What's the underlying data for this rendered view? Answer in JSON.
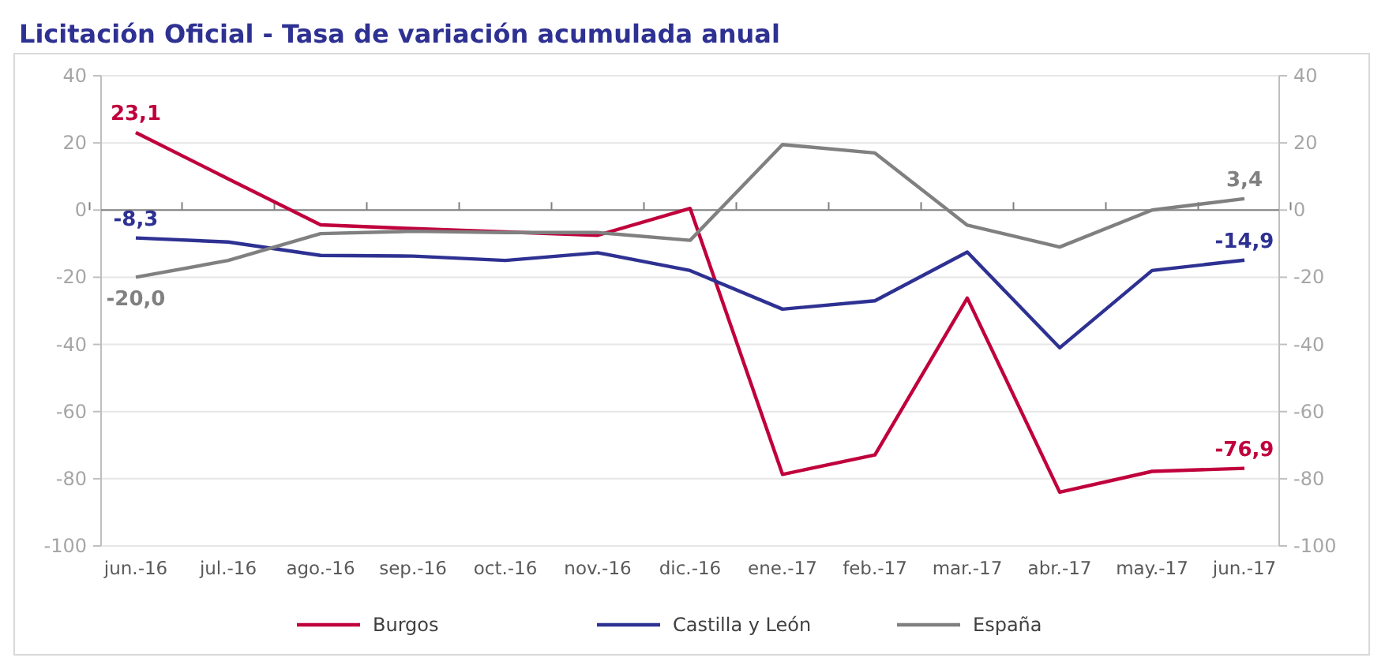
{
  "chart_data": {
    "type": "line",
    "title": "Licitación Oficial - Tasa de variación acumulada anual",
    "categories": [
      "jun.-16",
      "jul.-16",
      "ago.-16",
      "sep.-16",
      "oct.-16",
      "nov.-16",
      "dic.-16",
      "ene.-17",
      "feb.-17",
      "mar.-17",
      "abr.-17",
      "may.-17",
      "jun.-17"
    ],
    "series": [
      {
        "name": "Burgos",
        "color": "#c0003c",
        "values": [
          23.1,
          9.3,
          -4.4,
          -5.5,
          -6.5,
          -7.5,
          0.5,
          -78.7,
          -72.9,
          -26.2,
          -84.0,
          -77.8,
          -76.9
        ],
        "value_labels": [
          "23,1",
          null,
          null,
          null,
          null,
          null,
          null,
          null,
          null,
          null,
          null,
          null,
          "-76,9"
        ]
      },
      {
        "name": "Castilla y León",
        "color": "#2e3192",
        "values": [
          -8.3,
          -9.5,
          -13.5,
          -13.7,
          -15.0,
          -12.7,
          -18.0,
          -29.5,
          -27.0,
          -12.5,
          -41.0,
          -18.0,
          -14.9
        ],
        "value_labels": [
          "-8,3",
          null,
          null,
          null,
          null,
          null,
          null,
          null,
          null,
          null,
          null,
          null,
          "-14,9"
        ]
      },
      {
        "name": "España",
        "color": "#808080",
        "values": [
          -20.0,
          -15.0,
          -7.0,
          -6.3,
          -6.7,
          -6.7,
          -9.0,
          19.5,
          17.0,
          -4.5,
          -11.0,
          0.0,
          3.4
        ],
        "value_labels": [
          "-20,0",
          null,
          null,
          null,
          null,
          null,
          null,
          null,
          null,
          null,
          null,
          null,
          "3,4"
        ]
      }
    ],
    "ylim": [
      -100,
      40
    ],
    "yticks": [
      -100,
      -80,
      -60,
      -40,
      -20,
      0,
      20,
      40
    ],
    "y2lim": [
      -100,
      40
    ],
    "y2ticks": [
      -100,
      -80,
      -60,
      -40,
      -20,
      0,
      20,
      40
    ],
    "grid": "y",
    "legend": "bottom",
    "marker": "none",
    "line_style": "solid"
  }
}
